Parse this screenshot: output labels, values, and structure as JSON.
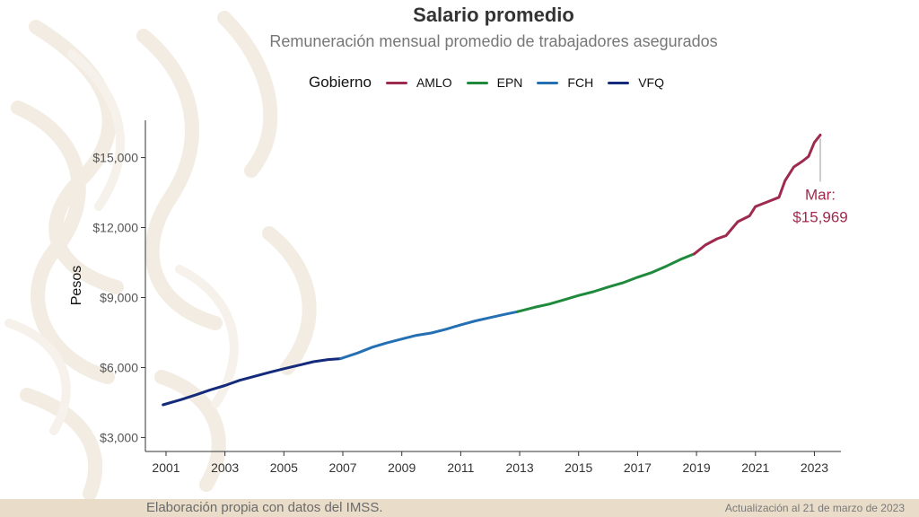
{
  "title": "Salario promedio",
  "subtitle": "Remuneración mensual promedio de trabajadores asegurados",
  "legend": {
    "title": "Gobierno",
    "items": [
      {
        "label": "AMLO",
        "color": "#9e2a4e"
      },
      {
        "label": "EPN",
        "color": "#1f8a3c"
      },
      {
        "label": "FCH",
        "color": "#2470b3"
      },
      {
        "label": "VFQ",
        "color": "#142a7a"
      }
    ]
  },
  "chart_data": {
    "type": "line",
    "ylabel": "Pesos",
    "xlim": [
      2000.3,
      2023.9
    ],
    "ylim": [
      2400,
      16600
    ],
    "xticks": [
      2001,
      2003,
      2005,
      2007,
      2009,
      2011,
      2013,
      2015,
      2017,
      2019,
      2021,
      2023
    ],
    "xtick_labels": [
      "2001",
      "2003",
      "2005",
      "2007",
      "2009",
      "2011",
      "2013",
      "2015",
      "2017",
      "2019",
      "2021",
      "2023"
    ],
    "yticks": [
      3000,
      6000,
      9000,
      12000,
      15000
    ],
    "ytick_labels": [
      "$3,000",
      "$6,000",
      "$9,000",
      "$12,000",
      "$15,000"
    ],
    "series": [
      {
        "name": "VFQ",
        "color": "#142a7a",
        "x": [
          2000.9,
          2001.5,
          2002.0,
          2002.5,
          2003.0,
          2003.5,
          2004.0,
          2004.5,
          2005.0,
          2005.5,
          2006.0,
          2006.5,
          2006.92
        ],
        "y": [
          4400,
          4620,
          4820,
          5040,
          5230,
          5450,
          5620,
          5790,
          5950,
          6100,
          6250,
          6340,
          6380
        ]
      },
      {
        "name": "FCH",
        "color": "#2470b3",
        "x": [
          2006.92,
          2007.5,
          2008.0,
          2008.5,
          2009.0,
          2009.5,
          2010.0,
          2010.5,
          2011.0,
          2011.5,
          2012.0,
          2012.5,
          2012.92
        ],
        "y": [
          6380,
          6620,
          6870,
          7060,
          7220,
          7380,
          7480,
          7640,
          7830,
          8000,
          8140,
          8280,
          8390
        ]
      },
      {
        "name": "EPN",
        "color": "#1f8a3c",
        "x": [
          2012.92,
          2013.5,
          2014.0,
          2014.5,
          2015.0,
          2015.5,
          2016.0,
          2016.5,
          2017.0,
          2017.5,
          2018.0,
          2018.5,
          2018.92
        ],
        "y": [
          8390,
          8580,
          8720,
          8900,
          9090,
          9250,
          9450,
          9630,
          9870,
          10080,
          10360,
          10660,
          10870
        ]
      },
      {
        "name": "AMLO",
        "color": "#9e2a4e",
        "x": [
          2018.92,
          2019.3,
          2019.7,
          2020.0,
          2020.4,
          2020.8,
          2021.0,
          2021.4,
          2021.8,
          2022.0,
          2022.3,
          2022.6,
          2022.8,
          2023.0,
          2023.2
        ],
        "y": [
          10870,
          11250,
          11520,
          11650,
          12250,
          12500,
          12900,
          13100,
          13300,
          14000,
          14600,
          14850,
          15050,
          15650,
          15969
        ]
      }
    ],
    "annotation": {
      "line1": "Mar:",
      "line2": "$15,969",
      "x": 2023.2,
      "y": 15969
    }
  },
  "footer": {
    "source": "Elaboración propia con datos del IMSS.",
    "update": "Actualización al 21 de marzo de 2023"
  }
}
